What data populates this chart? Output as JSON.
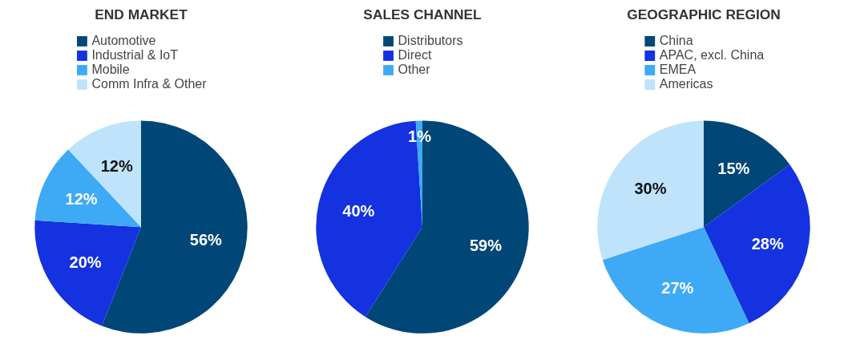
{
  "chart_data": [
    {
      "type": "pie",
      "title": "END MARKET",
      "categories": [
        "Automotive",
        "Industrial & IoT",
        "Mobile",
        "Comm Infra & Other"
      ],
      "values": [
        56,
        20,
        12,
        12
      ],
      "value_labels": [
        "56%",
        "20%",
        "12%",
        "12%"
      ],
      "colors": [
        "#004677",
        "#1432e0",
        "#3eaaf5",
        "#bfe3fb"
      ],
      "legend": "top"
    },
    {
      "type": "pie",
      "title": "SALES CHANNEL",
      "categories": [
        "Distributors",
        "Direct",
        "Other"
      ],
      "values": [
        59,
        40,
        1
      ],
      "value_labels": [
        "59%",
        "40%",
        "1%"
      ],
      "colors": [
        "#004677",
        "#1432e0",
        "#3eaaf5"
      ],
      "legend": "top"
    },
    {
      "type": "pie",
      "title": "GEOGRAPHIC REGION",
      "categories": [
        "China",
        "APAC, excl. China",
        "EMEA",
        "Americas"
      ],
      "values": [
        15,
        28,
        27,
        30
      ],
      "value_labels": [
        "15%",
        "28%",
        "27%",
        "30%"
      ],
      "colors": [
        "#004677",
        "#1432e0",
        "#3eaaf5",
        "#bfe3fb"
      ],
      "legend": "top"
    }
  ]
}
